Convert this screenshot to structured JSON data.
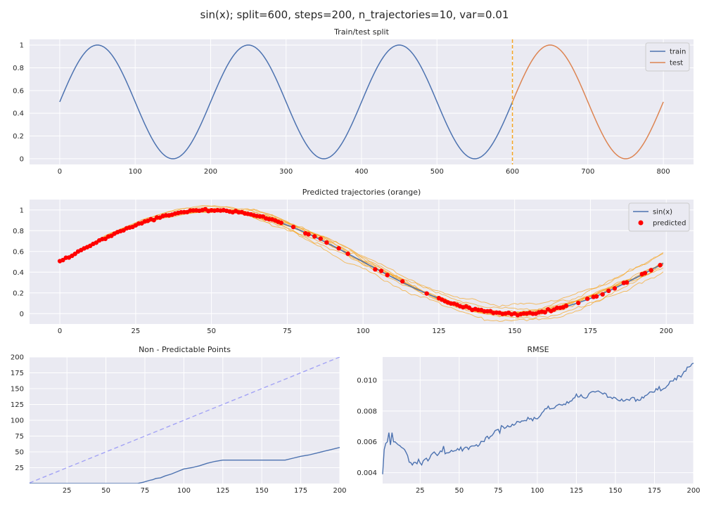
{
  "suptitle": "sin(x); split=600, steps=200, n_trajectories=10, var=0.01",
  "colors": {
    "train": "#4c72b0",
    "test": "#dd8452",
    "split_line": "#f5a623",
    "trajectory": "#f5a623",
    "predicted": "#ff0000",
    "sin_line": "#4c72b0",
    "ideal_line": "#a3a3f5",
    "plot_bg": "#eaeaf2"
  },
  "chart_data": [
    {
      "type": "line",
      "title": "Train/test split",
      "xlabel": "",
      "ylabel": "",
      "xlim": [
        -40,
        840
      ],
      "ylim": [
        -0.05,
        1.05
      ],
      "xticks": [
        0,
        100,
        200,
        300,
        400,
        500,
        600,
        700,
        800
      ],
      "yticks": [
        0.0,
        0.2,
        0.4,
        0.6,
        0.8,
        1.0
      ],
      "grid": true,
      "legend_position": "top-right",
      "function": "0.5 + 0.5*sin(2*pi*x/200)",
      "vline_x": 600,
      "series": [
        {
          "name": "train",
          "x_range": [
            0,
            600
          ],
          "color": "#4c72b0"
        },
        {
          "name": "test",
          "x_range": [
            600,
            800
          ],
          "color": "#dd8452"
        }
      ]
    },
    {
      "type": "line",
      "title": "Predicted trajectories (orange)",
      "xlabel": "",
      "ylabel": "",
      "xlim": [
        -10,
        209
      ],
      "ylim": [
        -0.1,
        1.1
      ],
      "xticks": [
        0,
        25,
        50,
        75,
        100,
        125,
        150,
        175,
        200
      ],
      "yticks": [
        0.0,
        0.2,
        0.4,
        0.6,
        0.8,
        1.0
      ],
      "grid": true,
      "legend_position": "top-right",
      "function": "0.5 + 0.5*sin(2*pi*x/200)",
      "x_range": [
        0,
        199
      ],
      "n_trajectories": 10,
      "series": [
        {
          "name": "sin(x)",
          "color": "#4c72b0"
        },
        {
          "name": "predicted",
          "color": "#ff0000"
        }
      ],
      "predicted_x": [
        0,
        1,
        2,
        3,
        4,
        5,
        6,
        7,
        8,
        9,
        10,
        11,
        12,
        13,
        14,
        15,
        16,
        17,
        18,
        19,
        20,
        21,
        22,
        23,
        24,
        25,
        26,
        27,
        28,
        29,
        30,
        31,
        32,
        33,
        34,
        35,
        36,
        37,
        38,
        39,
        40,
        41,
        42,
        43,
        44,
        45,
        46,
        47,
        48,
        49,
        50,
        51,
        52,
        53,
        54,
        55,
        56,
        57,
        58,
        59,
        60,
        61,
        62,
        63,
        64,
        65,
        66,
        67,
        68,
        69,
        70,
        71,
        72,
        73,
        77,
        81,
        82,
        84,
        86,
        88,
        92,
        95,
        104,
        106,
        108,
        113,
        121,
        125,
        126,
        127,
        128,
        129,
        130,
        131,
        132,
        133,
        134,
        135,
        136,
        137,
        138,
        139,
        140,
        141,
        142,
        143,
        144,
        145,
        146,
        147,
        148,
        149,
        150,
        151,
        152,
        153,
        154,
        155,
        156,
        157,
        158,
        159,
        160,
        161,
        162,
        163,
        164,
        165,
        166,
        167,
        171,
        174,
        176,
        177,
        179,
        181,
        183,
        186,
        187,
        192,
        193,
        195,
        198
      ]
    },
    {
      "type": "line",
      "title": "Non - Predictable Points",
      "xlabel": "",
      "ylabel": "",
      "xlim": [
        1,
        200
      ],
      "ylim": [
        0,
        200
      ],
      "xticks": [
        25,
        50,
        75,
        100,
        125,
        150,
        175,
        200
      ],
      "yticks": [
        25,
        50,
        75,
        100,
        125,
        150,
        175,
        200
      ],
      "grid": true,
      "series": [
        {
          "name": "",
          "style": "dashed",
          "color": "#a3a3f5",
          "x": [
            1,
            200
          ],
          "y": [
            1,
            200
          ]
        },
        {
          "name": "",
          "style": "solid",
          "color": "#4c72b0",
          "x": [
            1,
            70,
            74,
            78,
            80,
            82,
            85,
            88,
            92,
            96,
            100,
            105,
            110,
            115,
            120,
            125,
            165,
            170,
            175,
            180,
            185,
            190,
            195,
            200
          ],
          "y": [
            0,
            0,
            2,
            5,
            6,
            8,
            9,
            12,
            15,
            19,
            23,
            25,
            28,
            32,
            35,
            37,
            37,
            40,
            43,
            45,
            48,
            51,
            54,
            57
          ]
        }
      ]
    },
    {
      "type": "line",
      "title": "RMSE",
      "xlabel": "",
      "ylabel": "",
      "xlim": [
        1,
        200
      ],
      "ylim": [
        0.0033,
        0.0115
      ],
      "xticks": [
        25,
        50,
        75,
        100,
        125,
        150,
        175,
        200
      ],
      "yticks": [
        0.004,
        0.006,
        0.008,
        0.01
      ],
      "ytick_labels": [
        "0.004",
        "0.006",
        "0.008",
        "0.010"
      ],
      "grid": true,
      "series": [
        {
          "name": "",
          "color": "#4c72b0",
          "x": [
            1,
            2,
            3,
            4,
            5,
            6,
            7,
            8,
            9,
            10,
            12,
            14,
            16,
            18,
            20,
            22,
            24,
            26,
            28,
            30,
            32,
            34,
            36,
            38,
            40,
            42,
            45,
            50,
            55,
            60,
            65,
            70,
            72,
            75,
            80,
            85,
            90,
            95,
            100,
            105,
            110,
            115,
            120,
            125,
            130,
            135,
            140,
            145,
            150,
            155,
            160,
            165,
            170,
            175,
            180,
            185,
            190,
            195,
            198,
            200
          ],
          "y": [
            0.0039,
            0.0055,
            0.0059,
            0.006,
            0.0066,
            0.0058,
            0.0066,
            0.006,
            0.006,
            0.0059,
            0.0058,
            0.0055,
            0.0053,
            0.0048,
            0.0045,
            0.0048,
            0.0047,
            0.0046,
            0.0049,
            0.0048,
            0.0052,
            0.0053,
            0.0051,
            0.0054,
            0.0055,
            0.0053,
            0.0054,
            0.0055,
            0.0056,
            0.0057,
            0.0061,
            0.0063,
            0.0066,
            0.0068,
            0.007,
            0.0072,
            0.0073,
            0.0075,
            0.0075,
            0.0081,
            0.0083,
            0.0084,
            0.0085,
            0.009,
            0.0089,
            0.0092,
            0.0093,
            0.0089,
            0.0088,
            0.0087,
            0.0089,
            0.0087,
            0.0091,
            0.0093,
            0.0094,
            0.0099,
            0.0101,
            0.0106,
            0.011,
            0.0111
          ]
        }
      ]
    }
  ]
}
